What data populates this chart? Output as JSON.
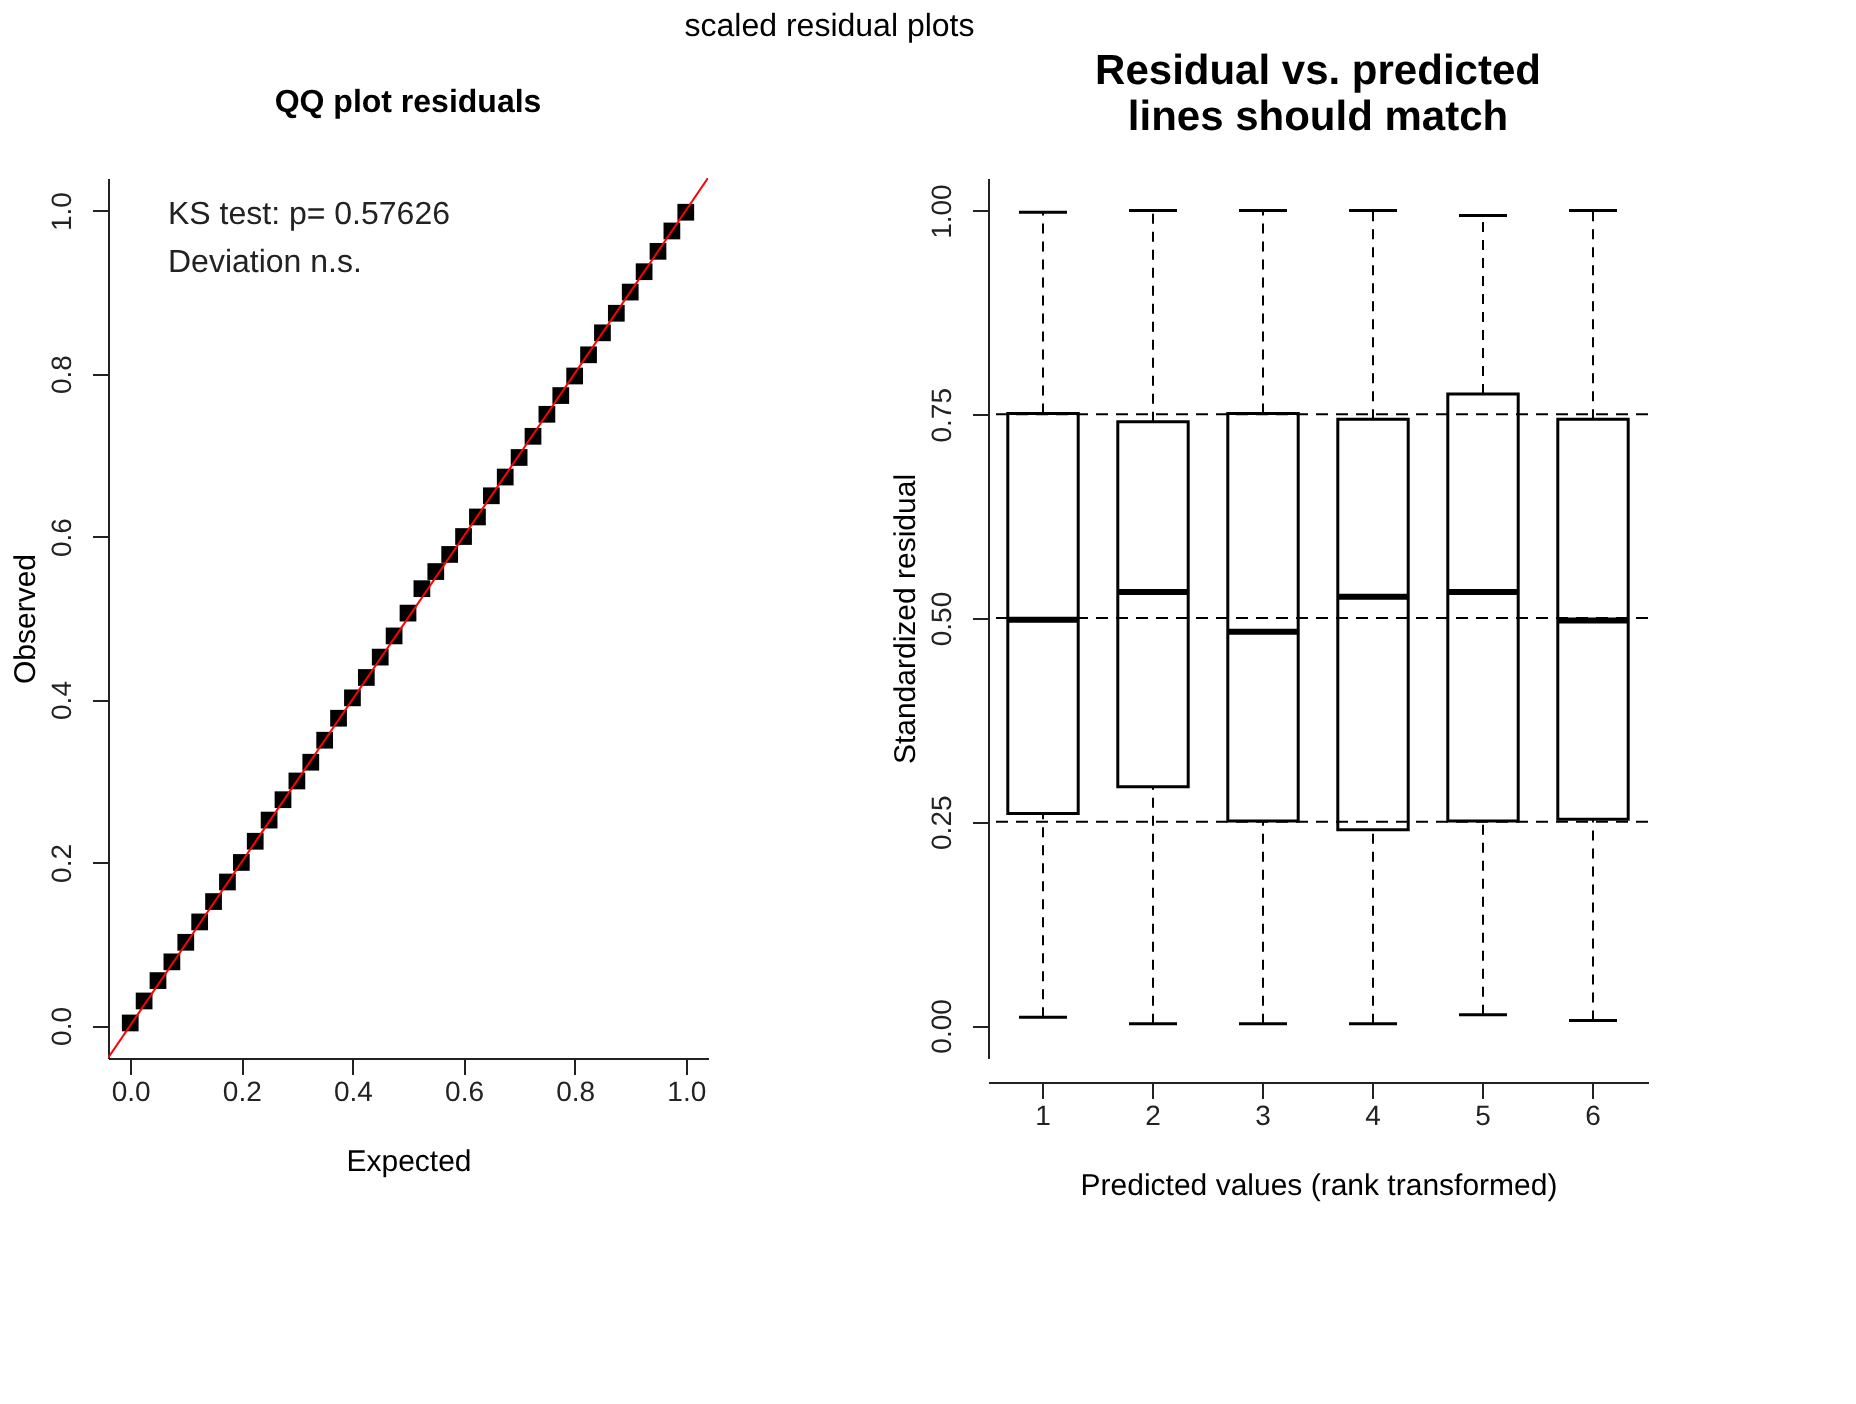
{
  "chart_data": [
    {
      "type": "scatter",
      "title": "QQ plot residuals",
      "xlabel": "Expected",
      "ylabel": "Observed",
      "annotations": [
        "scaled residual plots",
        "KS test: p= 0.57626",
        "Deviation  n.s."
      ],
      "xlim": [
        -0.04,
        1.04
      ],
      "ylim": [
        -0.04,
        1.04
      ],
      "xticks": [
        {
          "value": 0,
          "label": "0.0"
        },
        {
          "value": 0.2,
          "label": "0.2"
        },
        {
          "value": 0.4,
          "label": "0.4"
        },
        {
          "value": 0.6,
          "label": "0.6"
        },
        {
          "value": 0.8,
          "label": "0.8"
        },
        {
          "value": 1,
          "label": "1.0"
        }
      ],
      "yticks": [
        {
          "value": 0,
          "label": "0.0"
        },
        {
          "value": 0.2,
          "label": "0.2"
        },
        {
          "value": 0.4,
          "label": "0.4"
        },
        {
          "value": 0.6,
          "label": "0.6"
        },
        {
          "value": 0.8,
          "label": "0.8"
        },
        {
          "value": 1,
          "label": "1.0"
        }
      ],
      "series": [
        {
          "type": "scatter",
          "color": "#000000",
          "marker": "square",
          "x": [
            0,
            0.025,
            0.05,
            0.075,
            0.1,
            0.125,
            0.15,
            0.175,
            0.2,
            0.225,
            0.25,
            0.275,
            0.3,
            0.325,
            0.35,
            0.375,
            0.4,
            0.425,
            0.45,
            0.475,
            0.5,
            0.525,
            0.55,
            0.575,
            0.6,
            0.625,
            0.65,
            0.675,
            0.7,
            0.725,
            0.75,
            0.775,
            0.8,
            0.825,
            0.85,
            0.875,
            0.9,
            0.925,
            0.95,
            0.975,
            1
          ],
          "values": [
            0.003,
            0.03,
            0.055,
            0.078,
            0.102,
            0.127,
            0.152,
            0.176,
            0.2,
            0.226,
            0.252,
            0.277,
            0.3,
            0.323,
            0.35,
            0.377,
            0.402,
            0.427,
            0.452,
            0.478,
            0.506,
            0.536,
            0.557,
            0.578,
            0.6,
            0.624,
            0.65,
            0.673,
            0.697,
            0.723,
            0.75,
            0.773,
            0.797,
            0.823,
            0.85,
            0.874,
            0.9,
            0.925,
            0.95,
            0.975,
            0.998
          ]
        },
        {
          "type": "line",
          "color": "#ff0000",
          "line_style": "solid",
          "x": [
            -0.04,
            1.04
          ],
          "values": [
            -0.04,
            1.04
          ]
        }
      ]
    },
    {
      "type": "box",
      "title": "Residual vs. predicted\nlines should match",
      "xlabel": "Predicted values (rank transformed)",
      "ylabel": "Standardized residual",
      "categories": [
        "1",
        "2",
        "3",
        "4",
        "5",
        "6"
      ],
      "ylim": [
        -0.04,
        1.04
      ],
      "yticks": [
        {
          "value": 0,
          "label": "0.00"
        },
        {
          "value": 0.25,
          "label": "0.25"
        },
        {
          "value": 0.5,
          "label": "0.50"
        },
        {
          "value": 0.75,
          "label": "0.75"
        },
        {
          "value": 1,
          "label": "1.00"
        }
      ],
      "series": [
        {
          "color": "#000000",
          "boxes": [
            {
              "low": 0.01,
              "q1": 0.26,
              "median": 0.498,
              "q3": 0.751,
              "high": 0.998
            },
            {
              "low": 0.002,
              "q1": 0.293,
              "median": 0.532,
              "q3": 0.741,
              "high": 1.0
            },
            {
              "low": 0.002,
              "q1": 0.251,
              "median": 0.483,
              "q3": 0.751,
              "high": 1.0
            },
            {
              "low": 0.002,
              "q1": 0.24,
              "median": 0.526,
              "q3": 0.744,
              "high": 1.0
            },
            {
              "low": 0.013,
              "q1": 0.251,
              "median": 0.532,
              "q3": 0.775,
              "high": 0.994
            },
            {
              "low": 0.006,
              "q1": 0.253,
              "median": 0.497,
              "q3": 0.744,
              "high": 1.0
            }
          ]
        }
      ],
      "ref_lines": [
        {
          "axis": "y",
          "value": 0.25,
          "line_style": "dashed",
          "color": "#000000"
        },
        {
          "axis": "y",
          "value": 0.5,
          "line_style": "dashed",
          "color": "#000000"
        },
        {
          "axis": "y",
          "value": 0.75,
          "line_style": "dashed",
          "color": "#000000"
        }
      ]
    }
  ]
}
